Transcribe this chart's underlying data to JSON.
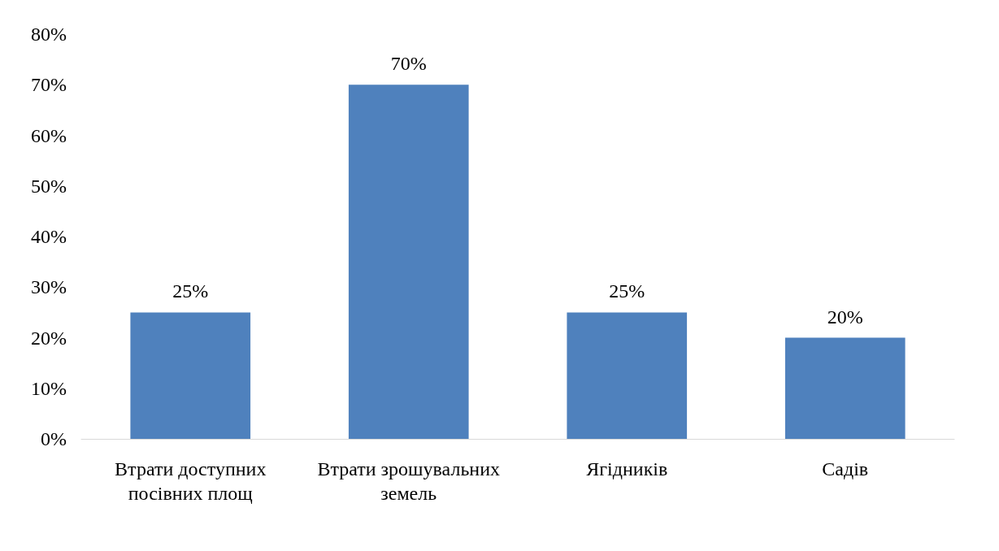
{
  "chart_data": {
    "type": "bar",
    "categories": [
      "Втрати доступних посівних площ",
      "Втрати зрошувальних земель",
      "Ягідників",
      "Садів"
    ],
    "values": [
      25,
      70,
      25,
      20
    ],
    "value_labels": [
      "25%",
      "70%",
      "25%",
      "20%"
    ],
    "color": "#4f81bd",
    "ylim": [
      0,
      80
    ],
    "yticks": [
      {
        "value": 0,
        "label": "0%"
      },
      {
        "value": 10,
        "label": "10%"
      },
      {
        "value": 20,
        "label": "20%"
      },
      {
        "value": 30,
        "label": "30%"
      },
      {
        "value": 40,
        "label": "40%"
      },
      {
        "value": 50,
        "label": "50%"
      },
      {
        "value": 60,
        "label": "60%"
      },
      {
        "value": 70,
        "label": "70%"
      },
      {
        "value": 80,
        "label": "80%"
      }
    ],
    "grid": false
  }
}
